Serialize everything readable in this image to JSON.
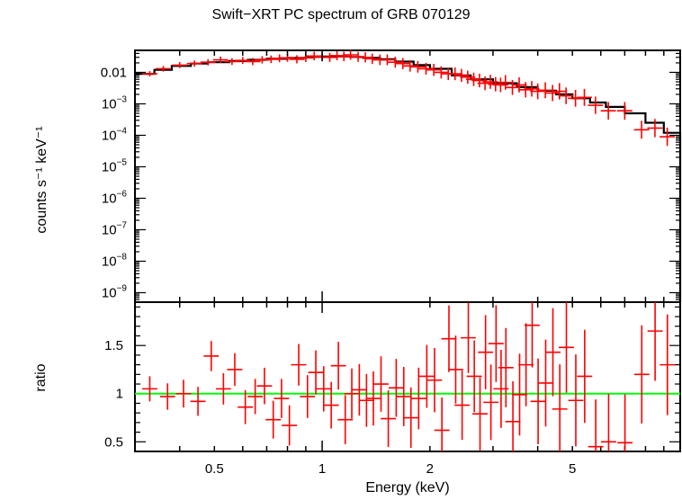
{
  "chart_data": [
    {
      "type": "scatter",
      "panel": "spectrum",
      "title": "Swift−XRT PC spectrum of GRB 070129",
      "ylabel": "counts s⁻¹ keV⁻¹",
      "xlabel": "Energy (keV)",
      "xscale": "log",
      "yscale": "log",
      "xlim": [
        0.3,
        10.0
      ],
      "ylim": [
        5e-10,
        0.05
      ],
      "y_ticks": [
        {
          "value": 0.01,
          "label": "0.01"
        },
        {
          "value": 0.001,
          "base": "10",
          "exp": "−3"
        },
        {
          "value": 0.0001,
          "base": "10",
          "exp": "−4"
        },
        {
          "value": 1e-05,
          "base": "10",
          "exp": "−5"
        },
        {
          "value": 1e-06,
          "base": "10",
          "exp": "−6"
        },
        {
          "value": 1e-07,
          "base": "10",
          "exp": "−7"
        },
        {
          "value": 1e-08,
          "base": "10",
          "exp": "−8"
        },
        {
          "value": 1e-09,
          "base": "10",
          "exp": "−9"
        }
      ],
      "data_color": "#ff0000",
      "model_color": "#000000",
      "series": [
        {
          "name": "data",
          "x": [
            0.33,
            0.36,
            0.4,
            0.44,
            0.48,
            0.52,
            0.56,
            0.6,
            0.64,
            0.68,
            0.72,
            0.76,
            0.8,
            0.85,
            0.9,
            0.95,
            1.0,
            1.05,
            1.1,
            1.15,
            1.2,
            1.26,
            1.32,
            1.38,
            1.45,
            1.52,
            1.6,
            1.68,
            1.76,
            1.85,
            1.95,
            2.05,
            2.15,
            2.25,
            2.35,
            2.45,
            2.55,
            2.65,
            2.75,
            2.85,
            2.95,
            3.05,
            3.15,
            3.25,
            3.4,
            3.55,
            3.7,
            3.85,
            4.0,
            4.2,
            4.4,
            4.6,
            4.8,
            5.1,
            5.4,
            5.8,
            6.3,
            7.0,
            7.8,
            8.5,
            9.2
          ],
          "y": [
            0.009,
            0.013,
            0.017,
            0.019,
            0.021,
            0.025,
            0.022,
            0.024,
            0.022,
            0.025,
            0.026,
            0.028,
            0.029,
            0.026,
            0.029,
            0.033,
            0.031,
            0.03,
            0.034,
            0.032,
            0.036,
            0.031,
            0.03,
            0.027,
            0.025,
            0.025,
            0.021,
            0.019,
            0.016,
            0.015,
            0.013,
            0.012,
            0.01,
            0.009,
            0.009,
            0.008,
            0.007,
            0.006,
            0.0055,
            0.0045,
            0.005,
            0.0042,
            0.004,
            0.0048,
            0.0033,
            0.004,
            0.0028,
            0.003,
            0.0025,
            0.0027,
            0.0022,
            0.0025,
            0.0018,
            0.0015,
            0.0016,
            0.0009,
            0.0006,
            0.0006,
            0.00015,
            0.00017,
            9e-05
          ]
        },
        {
          "name": "model",
          "x": [
            0.3,
            0.34,
            0.38,
            0.43,
            0.48,
            0.55,
            0.62,
            0.7,
            0.8,
            0.9,
            1.0,
            1.1,
            1.2,
            1.3,
            1.45,
            1.6,
            1.8,
            2.0,
            2.3,
            2.6,
            3.0,
            3.5,
            4.0,
            4.5,
            5.0,
            5.6,
            6.2,
            7.0,
            8.0,
            9.0,
            10.0
          ],
          "y": [
            0.009,
            0.012,
            0.016,
            0.019,
            0.021,
            0.023,
            0.025,
            0.027,
            0.029,
            0.031,
            0.032,
            0.032,
            0.031,
            0.029,
            0.026,
            0.022,
            0.017,
            0.013,
            0.008,
            0.006,
            0.0045,
            0.0034,
            0.0026,
            0.002,
            0.0015,
            0.0011,
            0.0008,
            0.0005,
            0.00025,
            0.00012,
            3e-05
          ]
        }
      ]
    },
    {
      "type": "scatter",
      "panel": "ratio",
      "ylabel": "ratio",
      "xlabel": "Energy (keV)",
      "xscale": "log",
      "xlim": [
        0.3,
        10.0
      ],
      "ylim": [
        0.4,
        1.95
      ],
      "x_ticks": [
        {
          "value": 0.5,
          "label": "0.5"
        },
        {
          "value": 1,
          "label": "1"
        },
        {
          "value": 2,
          "label": "2"
        },
        {
          "value": 5,
          "label": "5"
        }
      ],
      "y_ticks": [
        {
          "value": 0.5,
          "label": "0.5"
        },
        {
          "value": 1,
          "label": "1"
        },
        {
          "value": 1.5,
          "label": "1.5"
        }
      ],
      "reference_line": {
        "value": 1,
        "color": "#00ff00"
      },
      "data_color": "#ff0000",
      "series": [
        {
          "name": "ratio",
          "x": [
            0.33,
            0.37,
            0.41,
            0.45,
            0.49,
            0.53,
            0.57,
            0.61,
            0.65,
            0.69,
            0.73,
            0.77,
            0.81,
            0.86,
            0.91,
            0.96,
            1.01,
            1.06,
            1.11,
            1.16,
            1.21,
            1.27,
            1.33,
            1.39,
            1.46,
            1.53,
            1.61,
            1.69,
            1.77,
            1.86,
            1.96,
            2.06,
            2.16,
            2.26,
            2.36,
            2.46,
            2.56,
            2.66,
            2.76,
            2.86,
            2.96,
            3.06,
            3.16,
            3.26,
            3.41,
            3.56,
            3.71,
            3.86,
            4.01,
            4.21,
            4.41,
            4.61,
            4.81,
            5.11,
            5.41,
            5.81,
            6.31,
            7.01,
            7.81,
            8.51,
            9.21
          ],
          "y": [
            1.05,
            0.97,
            1.0,
            0.92,
            1.39,
            1.05,
            1.25,
            0.86,
            0.97,
            1.08,
            0.73,
            0.95,
            0.67,
            1.3,
            0.97,
            1.22,
            1.05,
            0.88,
            1.29,
            0.73,
            1.0,
            1.04,
            0.93,
            0.95,
            1.1,
            0.74,
            1.06,
            0.97,
            0.75,
            0.95,
            1.18,
            1.14,
            0.62,
            1.57,
            1.25,
            0.88,
            1.58,
            1.18,
            0.79,
            1.43,
            0.91,
            1.52,
            1.05,
            1.27,
            0.71,
            0.99,
            1.3,
            1.71,
            0.92,
            1.11,
            1.43,
            0.84,
            1.48,
            0.93,
            1.18,
            0.45,
            0.5,
            0.49,
            1.2,
            1.65,
            1.3
          ]
        }
      ]
    }
  ]
}
